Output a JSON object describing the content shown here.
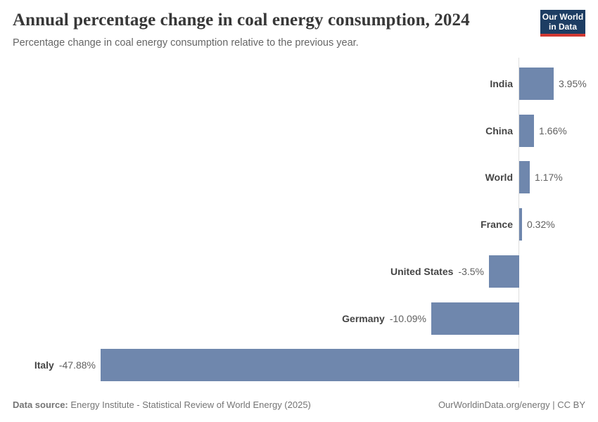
{
  "header": {
    "title": "Annual percentage change in coal energy consumption, 2024",
    "subtitle": "Percentage change in coal energy consumption relative to the previous year.",
    "logo": {
      "line1": "Our World",
      "line2": "in Data",
      "background_color": "#1d3d63",
      "accent_color": "#d13832"
    }
  },
  "chart_data": {
    "type": "bar",
    "orientation": "horizontal",
    "title": "Annual percentage change in coal energy consumption, 2024",
    "subtitle": "Percentage change in coal energy consumption relative to the previous year.",
    "xlabel": "",
    "ylabel": "",
    "xlim": [
      -47.88,
      3.95
    ],
    "grid": false,
    "legend": false,
    "bar_color": "#6f87ad",
    "axis_color": "#dedede",
    "categories": [
      "India",
      "China",
      "World",
      "France",
      "United States",
      "Germany",
      "Italy"
    ],
    "values": [
      3.95,
      1.66,
      1.17,
      0.32,
      -3.5,
      -10.09,
      -47.88
    ],
    "value_labels": [
      "3.95%",
      "1.66%",
      "1.17%",
      "0.32%",
      "-3.5%",
      "-10.09%",
      "-47.88%"
    ]
  },
  "footer": {
    "source_label": "Data source:",
    "source_text": " Energy Institute - Statistical Review of World Energy (2025)",
    "credit": "OurWorldinData.org/energy | CC BY"
  }
}
